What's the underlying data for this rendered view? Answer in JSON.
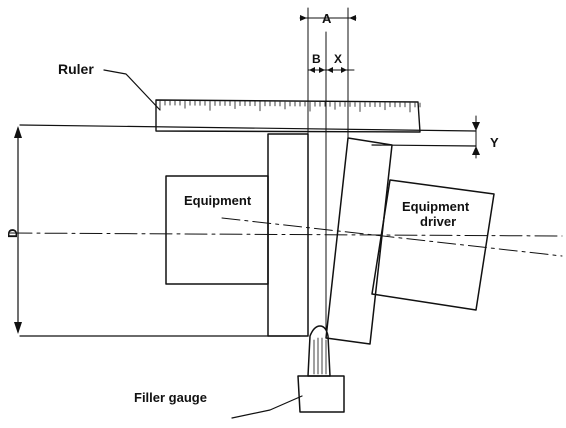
{
  "labels": {
    "ruler": "Ruler",
    "equipment": "Equipment",
    "equipment_driver_line1": "Equipment",
    "equipment_driver_line2": "driver",
    "filler_gauge": "Filler gauge",
    "dim_a": "A",
    "dim_b": "B",
    "dim_x": "X",
    "dim_y": "Y",
    "dim_d": "D"
  }
}
